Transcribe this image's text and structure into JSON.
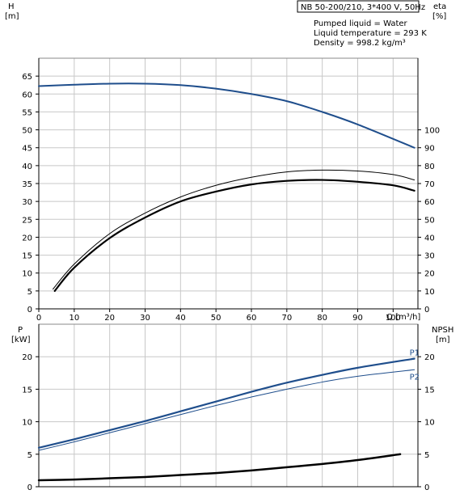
{
  "title_box": "NB 50-200/210, 3*400 V, 50Hz",
  "info_lines": [
    "Pumped liquid = Water",
    "Liquid temperature = 293 K",
    "Density = 998.2 kg/m³"
  ],
  "chart_data": [
    {
      "type": "line",
      "name": "performance",
      "x_label": "Q [m³/h]",
      "xlim": [
        0,
        107
      ],
      "x_ticks": [
        0,
        10,
        20,
        30,
        40,
        50,
        60,
        70,
        80,
        90,
        100
      ],
      "y_left_label": [
        "H",
        "[m]"
      ],
      "ylim_left": [
        0,
        70
      ],
      "y_left_ticks": [
        0,
        5,
        10,
        15,
        20,
        25,
        30,
        35,
        40,
        45,
        50,
        55,
        60,
        65
      ],
      "y_right_label": [
        "eta",
        "[%]"
      ],
      "ylim_right": [
        0,
        140
      ],
      "y_right_ticks": [
        0,
        10,
        20,
        30,
        40,
        50,
        60,
        70,
        80,
        90,
        100
      ],
      "grid": true,
      "series": [
        {
          "role": "head",
          "axis": "left",
          "color": "#1f4e8c",
          "width": 2,
          "x": [
            0,
            10,
            20,
            30,
            40,
            50,
            60,
            70,
            80,
            90,
            106
          ],
          "y": [
            62.2,
            62.6,
            62.9,
            62.9,
            62.5,
            61.5,
            60.0,
            58.0,
            55.0,
            51.5,
            45.0
          ]
        },
        {
          "role": "eta",
          "axis": "right",
          "color": "#000000",
          "width": 1,
          "x": [
            4,
            10,
            20,
            30,
            40,
            50,
            60,
            70,
            80,
            90,
            100,
            106
          ],
          "y": [
            11,
            25,
            42,
            53.5,
            62.5,
            69,
            73.5,
            76.5,
            77.5,
            77,
            75,
            72
          ]
        },
        {
          "role": "eta",
          "axis": "right",
          "color": "#000000",
          "width": 2.2,
          "x": [
            4.5,
            10,
            20,
            30,
            40,
            50,
            60,
            70,
            80,
            90,
            100,
            106
          ],
          "y": [
            10,
            23,
            39.5,
            51,
            60,
            65.5,
            69.5,
            71.5,
            72,
            71,
            69,
            66
          ]
        }
      ]
    },
    {
      "type": "line",
      "name": "power",
      "x_label": "",
      "xlim": [
        0,
        107
      ],
      "y_left_label": [
        "P",
        "[kW]"
      ],
      "ylim_left": [
        0,
        25
      ],
      "y_left_ticks": [
        0,
        5,
        10,
        15,
        20
      ],
      "y_right_label": [
        "NPSH",
        "[m]"
      ],
      "ylim_right": [
        0,
        25
      ],
      "y_right_ticks": [
        0,
        5,
        10,
        15,
        20
      ],
      "grid": true,
      "series": [
        {
          "name": "P1",
          "axis": "left",
          "color": "#1f4e8c",
          "width": 2.2,
          "x": [
            0,
            10,
            20,
            30,
            40,
            50,
            60,
            70,
            80,
            90,
            106
          ],
          "y": [
            6.0,
            7.3,
            8.7,
            10.1,
            11.6,
            13.1,
            14.6,
            16.0,
            17.2,
            18.3,
            19.7
          ]
        },
        {
          "name": "P2",
          "axis": "left",
          "color": "#1f4e8c",
          "width": 1,
          "x": [
            0,
            10,
            20,
            30,
            40,
            50,
            60,
            70,
            80,
            90,
            106
          ],
          "y": [
            5.6,
            6.9,
            8.3,
            9.7,
            11.1,
            12.5,
            13.8,
            15.0,
            16.1,
            17.0,
            18.0
          ]
        },
        {
          "role": "npsh",
          "axis": "right",
          "color": "#000000",
          "width": 2.5,
          "x": [
            0,
            10,
            20,
            30,
            40,
            50,
            60,
            70,
            80,
            90,
            102
          ],
          "y": [
            1.0,
            1.1,
            1.3,
            1.5,
            1.8,
            2.1,
            2.5,
            3.0,
            3.5,
            4.1,
            5.0
          ]
        }
      ]
    }
  ]
}
